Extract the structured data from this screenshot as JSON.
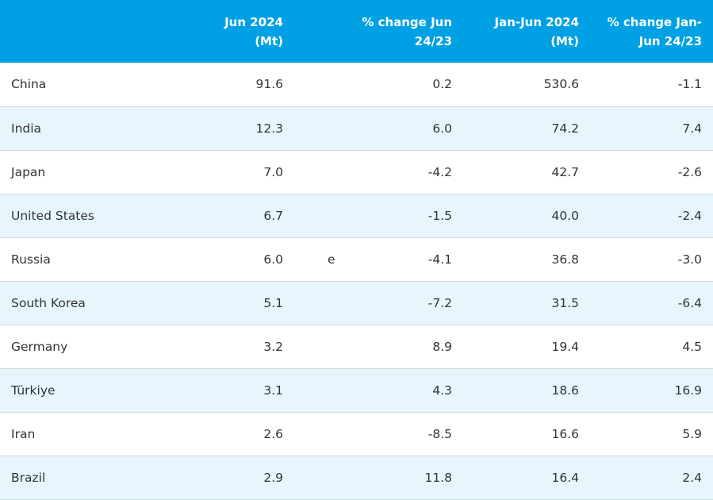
{
  "table": {
    "headers": {
      "country": "",
      "jun_2024": [
        "Jun 2024",
        "(Mt)"
      ],
      "pct_change_jun": [
        "% change Jun",
        "24/23"
      ],
      "jan_jun_2024": [
        "Jan-Jun 2024",
        "(Mt)"
      ],
      "pct_change_jan_jun": [
        "% change Jan-",
        "Jun 24/23"
      ]
    },
    "rows": [
      {
        "country": "China",
        "jun": "91.6",
        "note": "",
        "pct_jun": "0.2",
        "jan_jun": "530.6",
        "pct_jan_jun": "-1.1"
      },
      {
        "country": "India",
        "jun": "12.3",
        "note": "",
        "pct_jun": "6.0",
        "jan_jun": "74.2",
        "pct_jan_jun": "7.4"
      },
      {
        "country": "Japan",
        "jun": "7.0",
        "note": "",
        "pct_jun": "-4.2",
        "jan_jun": "42.7",
        "pct_jan_jun": "-2.6"
      },
      {
        "country": "United States",
        "jun": "6.7",
        "note": "",
        "pct_jun": "-1.5",
        "jan_jun": "40.0",
        "pct_jan_jun": "-2.4"
      },
      {
        "country": "Russia",
        "jun": "6.0",
        "note": "e",
        "pct_jun": "-4.1",
        "jan_jun": "36.8",
        "pct_jan_jun": "-3.0"
      },
      {
        "country": "South Korea",
        "jun": "5.1",
        "note": "",
        "pct_jun": "-7.2",
        "jan_jun": "31.5",
        "pct_jan_jun": "-6.4"
      },
      {
        "country": "Germany",
        "jun": "3.2",
        "note": "",
        "pct_jun": "8.9",
        "jan_jun": "19.4",
        "pct_jan_jun": "4.5"
      },
      {
        "country": "Türkiye",
        "jun": "3.1",
        "note": "",
        "pct_jun": "4.3",
        "jan_jun": "18.6",
        "pct_jan_jun": "16.9"
      },
      {
        "country": "Iran",
        "jun": "2.6",
        "note": "",
        "pct_jun": "-8.5",
        "jan_jun": "16.6",
        "pct_jan_jun": "5.9"
      },
      {
        "country": "Brazil",
        "jun": "2.9",
        "note": "",
        "pct_jun": "11.8",
        "jan_jun": "16.4",
        "pct_jan_jun": "2.4"
      }
    ]
  },
  "colors": {
    "header_bg": "#00a0e4",
    "header_text": "#ffffff",
    "alt_row_bg": "#e7f6fd",
    "row_border": "#cfd8de"
  }
}
